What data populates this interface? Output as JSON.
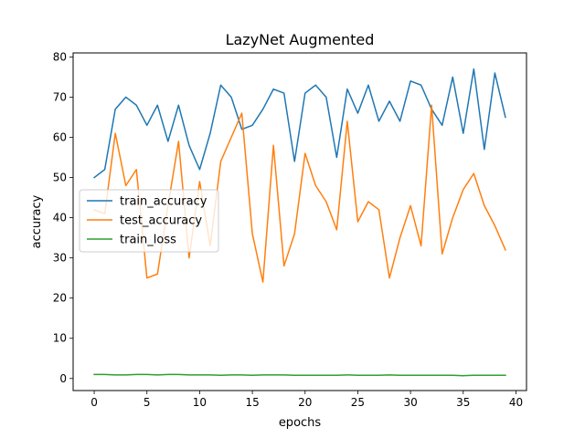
{
  "chart_data": {
    "type": "line",
    "title": "LazyNet Augmented",
    "xlabel": "epochs",
    "ylabel": "accuracy",
    "xlim": [
      -2,
      41
    ],
    "ylim": [
      -3,
      81
    ],
    "xticks": [
      0,
      5,
      10,
      15,
      20,
      25,
      30,
      35,
      40
    ],
    "yticks": [
      0,
      10,
      20,
      30,
      40,
      50,
      60,
      70,
      80
    ],
    "grid": false,
    "legend_position": "center-left",
    "x": [
      0,
      1,
      2,
      3,
      4,
      5,
      6,
      7,
      8,
      9,
      10,
      11,
      12,
      13,
      14,
      15,
      16,
      17,
      18,
      19,
      20,
      21,
      22,
      23,
      24,
      25,
      26,
      27,
      28,
      29,
      30,
      31,
      32,
      33,
      34,
      35,
      36,
      37,
      38,
      39
    ],
    "series": [
      {
        "name": "train_accuracy",
        "color": "#1f77b4",
        "values": [
          50,
          52,
          67,
          70,
          68,
          63,
          68,
          59,
          68,
          58,
          52,
          61,
          73,
          70,
          62,
          63,
          67,
          72,
          71,
          54,
          71,
          73,
          70,
          55,
          72,
          66,
          73,
          64,
          69,
          64,
          74,
          73,
          67,
          63,
          75,
          61,
          77,
          57,
          76,
          65
        ]
      },
      {
        "name": "test_accuracy",
        "color": "#ff7f0e",
        "values": [
          42,
          41,
          61,
          48,
          52,
          25,
          26,
          43,
          59,
          30,
          49,
          33,
          54,
          60,
          66,
          36,
          24,
          58,
          28,
          36,
          56,
          48,
          44,
          37,
          64,
          39,
          44,
          42,
          25,
          35,
          43,
          33,
          68,
          31,
          40,
          47,
          51,
          43,
          38,
          32
        ]
      },
      {
        "name": "train_loss",
        "color": "#2ca02c",
        "values": [
          1.0,
          1.0,
          0.9,
          0.9,
          1.0,
          1.0,
          0.9,
          1.0,
          1.0,
          0.9,
          0.9,
          0.9,
          0.8,
          0.9,
          0.9,
          0.8,
          0.9,
          0.9,
          0.9,
          0.8,
          0.8,
          0.8,
          0.8,
          0.8,
          0.9,
          0.8,
          0.8,
          0.8,
          0.9,
          0.8,
          0.8,
          0.8,
          0.8,
          0.8,
          0.8,
          0.7,
          0.8,
          0.8,
          0.8,
          0.8
        ]
      }
    ]
  }
}
